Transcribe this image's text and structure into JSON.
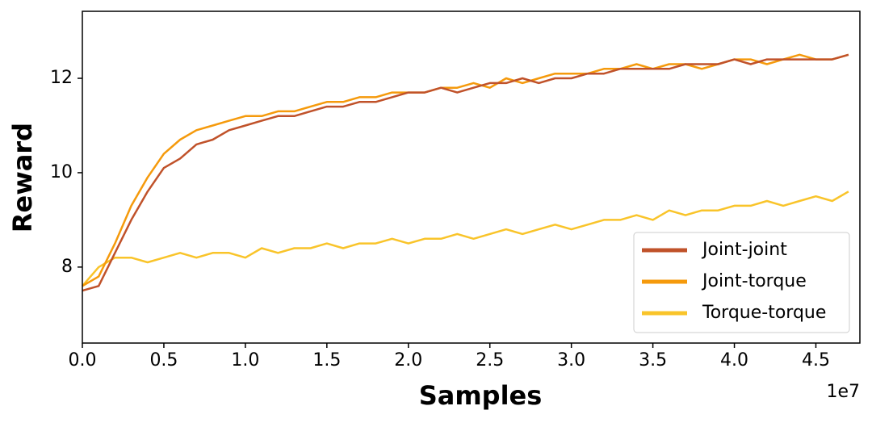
{
  "chart_data": {
    "type": "line",
    "xlabel": "Samples",
    "ylabel": "Reward",
    "x_scale_label": "1e7",
    "x": [
      0,
      0.1,
      0.2,
      0.3,
      0.4,
      0.5,
      0.6,
      0.7,
      0.8,
      0.9,
      1.0,
      1.1,
      1.2,
      1.3,
      1.4,
      1.5,
      1.6,
      1.7,
      1.8,
      1.9,
      2.0,
      2.1,
      2.2,
      2.3,
      2.4,
      2.5,
      2.6,
      2.7,
      2.8,
      2.9,
      3.0,
      3.1,
      3.2,
      3.3,
      3.4,
      3.5,
      3.6,
      3.7,
      3.8,
      3.9,
      4.0,
      4.1,
      4.2,
      4.3,
      4.4,
      4.5,
      4.6,
      4.7
    ],
    "series": [
      {
        "name": "Joint-joint",
        "color": "#c0522a",
        "values": [
          7.5,
          7.6,
          8.3,
          9.0,
          9.6,
          10.1,
          10.3,
          10.6,
          10.7,
          10.9,
          11.0,
          11.1,
          11.2,
          11.2,
          11.3,
          11.4,
          11.4,
          11.5,
          11.5,
          11.6,
          11.7,
          11.7,
          11.8,
          11.7,
          11.8,
          11.9,
          11.9,
          12.0,
          11.9,
          12.0,
          12.0,
          12.1,
          12.1,
          12.2,
          12.2,
          12.2,
          12.2,
          12.3,
          12.3,
          12.3,
          12.4,
          12.3,
          12.4,
          12.4,
          12.4,
          12.4,
          12.4,
          12.5
        ]
      },
      {
        "name": "Joint-torque",
        "color": "#f59a0c",
        "values": [
          7.6,
          7.8,
          8.5,
          9.3,
          9.9,
          10.4,
          10.7,
          10.9,
          11.0,
          11.1,
          11.2,
          11.2,
          11.3,
          11.3,
          11.4,
          11.5,
          11.5,
          11.6,
          11.6,
          11.7,
          11.7,
          11.7,
          11.8,
          11.8,
          11.9,
          11.8,
          12.0,
          11.9,
          12.0,
          12.1,
          12.1,
          12.1,
          12.2,
          12.2,
          12.3,
          12.2,
          12.3,
          12.3,
          12.2,
          12.3,
          12.4,
          12.4,
          12.3,
          12.4,
          12.5,
          12.4,
          12.4,
          12.5
        ]
      },
      {
        "name": "Torque-torque",
        "color": "#f9c42a",
        "values": [
          7.6,
          8.0,
          8.2,
          8.2,
          8.1,
          8.2,
          8.3,
          8.2,
          8.3,
          8.3,
          8.2,
          8.4,
          8.3,
          8.4,
          8.4,
          8.5,
          8.4,
          8.5,
          8.5,
          8.6,
          8.5,
          8.6,
          8.6,
          8.7,
          8.6,
          8.7,
          8.8,
          8.7,
          8.8,
          8.9,
          8.8,
          8.9,
          9.0,
          9.0,
          9.1,
          9.0,
          9.2,
          9.1,
          9.2,
          9.2,
          9.3,
          9.3,
          9.4,
          9.3,
          9.4,
          9.5,
          9.4,
          9.6
        ]
      }
    ],
    "xlim": [
      0,
      4.77
    ],
    "ylim": [
      6.39,
      13.42
    ],
    "xticks": [
      {
        "value": 0,
        "label": "0.0"
      },
      0.5,
      {
        "value": 1,
        "label": "1.0"
      },
      1.5,
      {
        "value": 2,
        "label": "2.0"
      },
      2.5,
      {
        "value": 3,
        "label": "3.0"
      },
      3.5,
      {
        "value": 4,
        "label": "4.0"
      },
      4.5
    ],
    "yticks": [
      8,
      10,
      12
    ],
    "legend": "lower right"
  }
}
